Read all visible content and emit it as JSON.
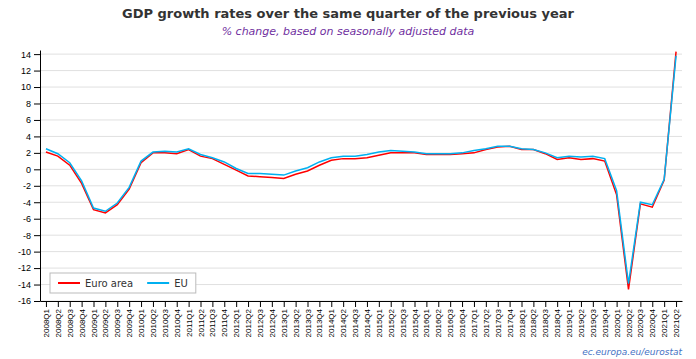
{
  "chart_data": {
    "type": "line",
    "title": "GDP growth rates over the same quarter of the previous year",
    "subtitle": "% change, based on seasonally adjusted data",
    "categories": [
      "2008Q1",
      "2008Q2",
      "2008Q3",
      "2008Q4",
      "2009Q1",
      "2009Q2",
      "2009Q3",
      "2009Q4",
      "2010Q1",
      "2010Q2",
      "2010Q3",
      "2010Q4",
      "2011Q1",
      "2011Q2",
      "2011Q3",
      "2011Q4",
      "2012Q1",
      "2012Q2",
      "2012Q3",
      "2012Q4",
      "2013Q1",
      "2013Q2",
      "2013Q3",
      "2013Q4",
      "2014Q1",
      "2014Q2",
      "2014Q3",
      "2014Q4",
      "2015Q1",
      "2015Q2",
      "2015Q3",
      "2015Q4",
      "2016Q1",
      "2016Q2",
      "2016Q3",
      "2016Q4",
      "2017Q1",
      "2017Q2",
      "2017Q3",
      "2017Q4",
      "2018Q1",
      "2018Q2",
      "2018Q3",
      "2018Q4",
      "2019Q1",
      "2019Q2",
      "2019Q3",
      "2019Q4",
      "2020Q1",
      "2020Q2",
      "2020Q3",
      "2020Q4",
      "2021Q1",
      "2021Q2"
    ],
    "series": [
      {
        "name": "Euro area",
        "color": "#ff0000",
        "values": [
          2.1,
          1.6,
          0.5,
          -1.7,
          -4.9,
          -5.3,
          -4.3,
          -2.4,
          0.8,
          2.0,
          2.0,
          1.9,
          2.4,
          1.6,
          1.3,
          0.6,
          -0.1,
          -0.8,
          -0.9,
          -1.0,
          -1.1,
          -0.6,
          -0.2,
          0.5,
          1.1,
          1.3,
          1.3,
          1.4,
          1.7,
          2.0,
          2.0,
          2.0,
          1.8,
          1.8,
          1.8,
          1.9,
          2.0,
          2.4,
          2.7,
          2.8,
          2.4,
          2.4,
          1.9,
          1.2,
          1.4,
          1.2,
          1.3,
          1.0,
          -3.1,
          -14.6,
          -4.2,
          -4.6,
          -1.3,
          14.3
        ]
      },
      {
        "name": "EU",
        "color": "#00b0f0",
        "values": [
          2.5,
          1.9,
          0.8,
          -1.4,
          -4.7,
          -5.1,
          -4.1,
          -2.2,
          1.0,
          2.1,
          2.2,
          2.1,
          2.5,
          1.8,
          1.4,
          0.9,
          0.1,
          -0.5,
          -0.5,
          -0.6,
          -0.7,
          -0.2,
          0.2,
          0.9,
          1.4,
          1.6,
          1.6,
          1.8,
          2.1,
          2.3,
          2.2,
          2.1,
          1.9,
          1.9,
          1.9,
          2.0,
          2.3,
          2.5,
          2.8,
          2.8,
          2.5,
          2.4,
          2.0,
          1.4,
          1.6,
          1.5,
          1.6,
          1.3,
          -2.6,
          -13.9,
          -4.0,
          -4.3,
          -1.2,
          13.8
        ]
      }
    ],
    "ylim": [
      -16,
      14.5
    ],
    "yticks": [
      -16,
      -14,
      -12,
      -10,
      -8,
      -6,
      -4,
      -2,
      0,
      2,
      4,
      6,
      8,
      10,
      12,
      14
    ],
    "grid": true,
    "legend": "lower left",
    "annotations": [
      "ec.europa.eu/eurostat"
    ]
  }
}
